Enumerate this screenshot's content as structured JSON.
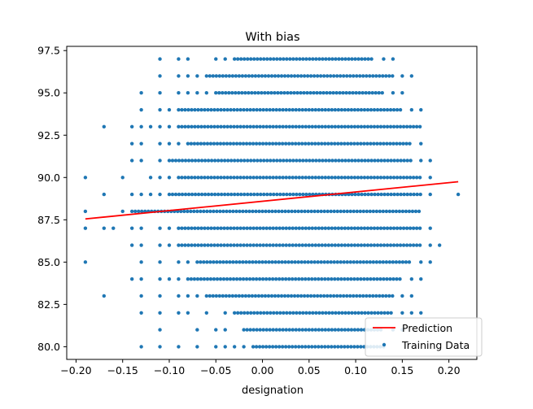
{
  "chart_data": {
    "type": "scatter",
    "title": "With bias",
    "xlabel": "designation",
    "ylabel": "",
    "xlim": [
      -0.21,
      0.23
    ],
    "ylim": [
      79.25,
      97.75
    ],
    "xticks": [
      -0.2,
      -0.15,
      -0.1,
      -0.05,
      0.0,
      0.05,
      0.1,
      0.15,
      0.2
    ],
    "xtick_labels": [
      "−0.20",
      "−0.15",
      "−0.10",
      "−0.05",
      "0.00",
      "0.05",
      "0.10",
      "0.15",
      "0.20"
    ],
    "yticks": [
      80.0,
      82.5,
      85.0,
      87.5,
      90.0,
      92.5,
      95.0,
      97.5
    ],
    "ytick_labels": [
      "80.0",
      "82.5",
      "85.0",
      "87.5",
      "90.0",
      "92.5",
      "95.0",
      "97.5"
    ],
    "grid": false,
    "legend": {
      "position": "lower right",
      "entries": [
        "Prediction",
        "Training Data"
      ]
    },
    "series": [
      {
        "name": "Prediction",
        "kind": "line",
        "color": "#ff0000",
        "x": [
          -0.19,
          0.21
        ],
        "y": [
          87.55,
          89.75
        ]
      },
      {
        "name": "Training Data",
        "kind": "scatter",
        "color": "#1f77b4",
        "rows": [
          {
            "y": 97,
            "solid": [
              -0.03,
              0.12
            ],
            "sparse": [
              -0.11,
              -0.09,
              -0.08,
              -0.05,
              -0.04,
              0.13,
              0.14
            ]
          },
          {
            "y": 96,
            "solid": [
              -0.06,
              0.14
            ],
            "sparse": [
              -0.11,
              -0.09,
              -0.08,
              -0.07,
              0.15,
              0.16
            ]
          },
          {
            "y": 95,
            "solid": [
              -0.05,
              0.13
            ],
            "sparse": [
              -0.13,
              -0.11,
              -0.09,
              -0.08,
              -0.07,
              -0.06,
              0.14,
              0.15
            ]
          },
          {
            "y": 94,
            "solid": [
              -0.09,
              0.15
            ],
            "sparse": [
              -0.13,
              -0.11,
              -0.1,
              0.16,
              0.17
            ]
          },
          {
            "y": 93,
            "solid": [
              -0.09,
              0.17
            ],
            "sparse": [
              -0.17,
              -0.14,
              -0.13,
              -0.12,
              -0.11,
              -0.1
            ]
          },
          {
            "y": 92,
            "solid": [
              -0.08,
              0.16
            ],
            "sparse": [
              -0.14,
              -0.13,
              -0.11,
              -0.1,
              -0.09,
              0.17
            ]
          },
          {
            "y": 91,
            "solid": [
              -0.1,
              0.16
            ],
            "sparse": [
              -0.14,
              -0.13,
              -0.11,
              0.17,
              0.18
            ]
          },
          {
            "y": 90,
            "solid": [
              -0.09,
              0.17
            ],
            "sparse": [
              -0.19,
              -0.15,
              -0.12,
              -0.11,
              -0.1,
              0.18
            ]
          },
          {
            "y": 89,
            "solid": [
              -0.1,
              0.17
            ],
            "sparse": [
              -0.17,
              -0.14,
              -0.13,
              -0.12,
              -0.11,
              0.18,
              0.21
            ]
          },
          {
            "y": 88,
            "solid": [
              -0.14,
              0.17
            ],
            "sparse": [
              -0.19,
              -0.15
            ]
          },
          {
            "y": 87,
            "solid": [
              -0.09,
              0.17
            ],
            "sparse": [
              -0.19,
              -0.17,
              -0.16,
              -0.14,
              -0.13,
              -0.11,
              -0.1,
              0.18
            ]
          },
          {
            "y": 86,
            "solid": [
              -0.09,
              0.17
            ],
            "sparse": [
              -0.14,
              -0.13,
              -0.11,
              -0.1,
              0.18,
              0.19
            ]
          },
          {
            "y": 85,
            "solid": [
              -0.07,
              0.16
            ],
            "sparse": [
              -0.19,
              -0.13,
              -0.11,
              -0.09,
              -0.08,
              0.17,
              0.18
            ]
          },
          {
            "y": 84,
            "solid": [
              -0.08,
              0.15
            ],
            "sparse": [
              -0.14,
              -0.13,
              -0.11,
              -0.1,
              -0.09,
              0.16,
              0.17
            ]
          },
          {
            "y": 83,
            "solid": [
              -0.06,
              0.14
            ],
            "sparse": [
              -0.17,
              -0.13,
              -0.11,
              -0.09,
              -0.08,
              -0.07,
              0.15,
              0.16
            ]
          },
          {
            "y": 82,
            "solid": [
              -0.03,
              0.14
            ],
            "sparse": [
              -0.13,
              -0.11,
              -0.09,
              -0.08,
              -0.06,
              -0.04,
              0.15,
              0.16,
              0.17
            ]
          },
          {
            "y": 81,
            "solid": [
              -0.02,
              0.13
            ],
            "sparse": [
              -0.11,
              -0.07,
              -0.05,
              -0.04,
              0.14,
              0.15
            ]
          },
          {
            "y": 80,
            "solid": [
              -0.01,
              0.13
            ],
            "sparse": [
              -0.13,
              -0.11,
              -0.09,
              -0.07,
              -0.05,
              -0.04,
              -0.03,
              -0.02
            ]
          }
        ]
      }
    ]
  }
}
